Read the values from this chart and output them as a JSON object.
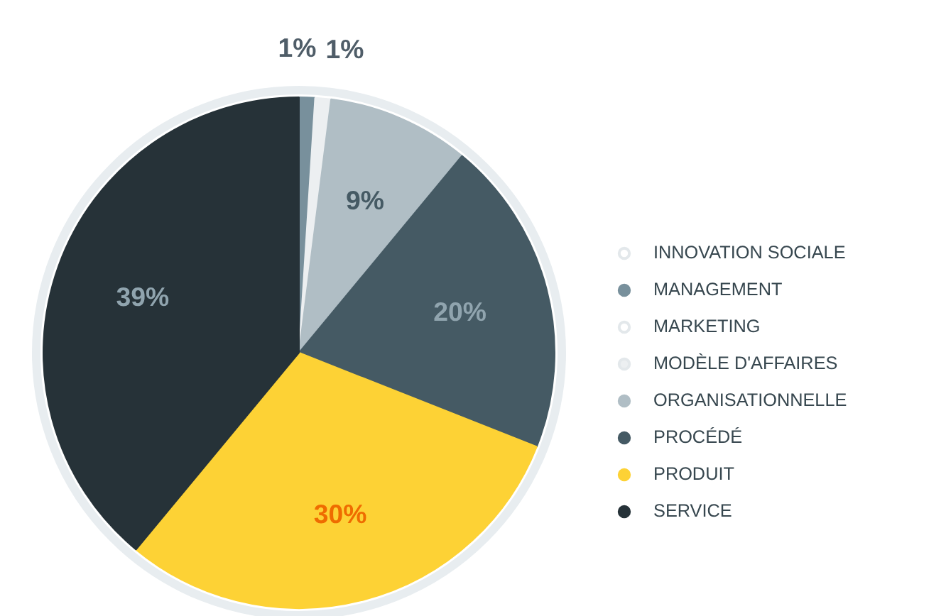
{
  "chart_data": {
    "type": "pie",
    "categories": [
      "INNOVATION SOCIALE",
      "MANAGEMENT",
      "MARKETING",
      "MODÈLE D'AFFAIRES",
      "ORGANISATIONNELLE",
      "PROCÉDÉ",
      "PRODUIT",
      "SERVICE"
    ],
    "values": [
      0,
      1,
      0,
      1,
      9,
      20,
      30,
      39
    ],
    "colors": [
      "#ffffff",
      "#78909c",
      "#ffffff",
      "#eceff1",
      "#b0bec5",
      "#455a64",
      "#fdd235",
      "#263238"
    ],
    "value_labels": [
      null,
      "1%",
      null,
      "1%",
      "9%",
      "20%",
      "30%",
      "39%"
    ],
    "legend": "right"
  }
}
